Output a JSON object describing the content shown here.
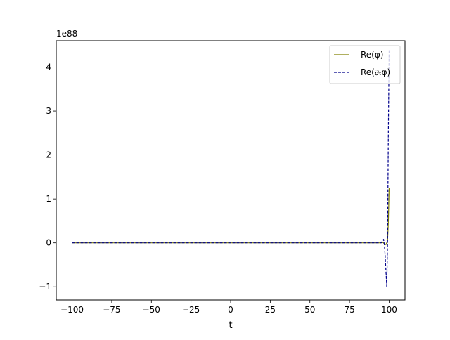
{
  "chart_data": {
    "type": "line",
    "title": "",
    "xlabel": "t",
    "ylabel": "",
    "offset_text": "1e88",
    "xlim": [
      -110,
      110
    ],
    "ylim": [
      -1.3,
      4.6
    ],
    "xticks": [
      -100,
      -75,
      -50,
      -25,
      0,
      25,
      50,
      75,
      100
    ],
    "xtick_labels": [
      "−100",
      "−75",
      "−50",
      "−25",
      "0",
      "25",
      "50",
      "75",
      "100"
    ],
    "yticks": [
      -1,
      0,
      1,
      2,
      3,
      4
    ],
    "ytick_labels": [
      "−1",
      "0",
      "1",
      "2",
      "3",
      "4"
    ],
    "grid": false,
    "legend_position": "top-right",
    "series": [
      {
        "name": "Re(φ)",
        "color": "#808000",
        "style": "solid",
        "x": [
          -100,
          -50,
          0,
          50,
          90,
          95,
          96,
          97,
          98,
          99,
          99.5,
          100
        ],
        "y": [
          0,
          0,
          0,
          0,
          0,
          0,
          0.01,
          -0.02,
          -0.04,
          0.05,
          0.45,
          1.25
        ]
      },
      {
        "name": "Re(∂ₜφ)",
        "color": "#00008b",
        "style": "dashed",
        "x": [
          -100,
          -50,
          0,
          50,
          90,
          95,
          96,
          96.5,
          97,
          97.5,
          98,
          98.5,
          99,
          99.5,
          100
        ],
        "y": [
          0,
          0,
          0,
          0,
          0,
          0,
          0.05,
          0.08,
          -0.05,
          -0.3,
          -0.65,
          -1.0,
          0.0,
          2.5,
          4.4
        ]
      }
    ]
  }
}
